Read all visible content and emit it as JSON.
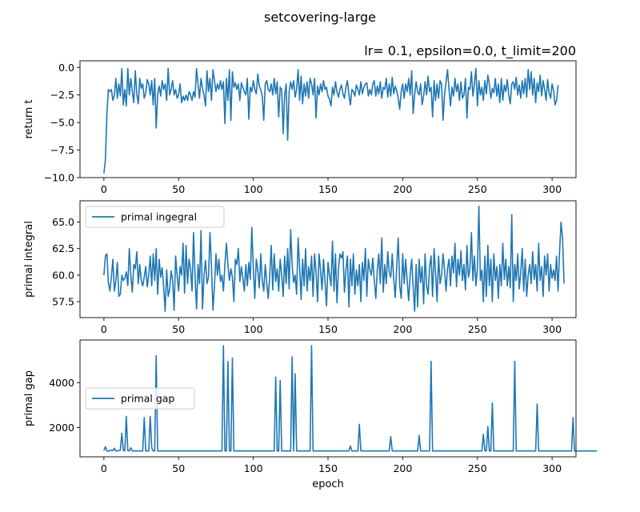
{
  "figure": {
    "suptitle": "setcovering-large",
    "title": "lr= 0.1, epsilon=0.0, t_limit=200",
    "line_color": "#1f77b4"
  },
  "chart_data": [
    {
      "type": "line",
      "title": "lr= 0.1, epsilon=0.0, t_limit=200",
      "xlabel": "",
      "ylabel": "return t",
      "xlim": [
        -16,
        316
      ],
      "ylim": [
        -10.0,
        0.6
      ],
      "xticks": [
        0,
        50,
        100,
        150,
        200,
        250,
        300
      ],
      "yticks": [
        -10.0,
        -7.5,
        -5.0,
        -2.5,
        0.0
      ],
      "ytick_labels": [
        "−10.0",
        "−7.5",
        "−5.0",
        "−2.5",
        "0.0"
      ],
      "legend": null,
      "series": [
        {
          "values": [
            -9.6,
            -8.4,
            -4.2,
            -2.0,
            -2.2,
            -2.0,
            -3.0,
            -2.5,
            -1.0,
            -2.8,
            -1.5,
            -2.6,
            -0.1,
            -3.4,
            -2.0,
            -3.5,
            -0.1,
            -2.5,
            -1.0,
            -2.2,
            -3.2,
            -0.3,
            -2.4,
            -3.3,
            -1.0,
            -1.9,
            -1.5,
            -2.8,
            -2.3,
            -1.1,
            -1.5,
            -2.5,
            -1.2,
            -3.4,
            -1.0,
            -5.5,
            -2.4,
            -1.7,
            -2.6,
            -1.2,
            -2.0,
            -1.5,
            -3.0,
            -0.1,
            -2.5,
            -2.0,
            -1.2,
            -2.5,
            -2.0,
            -2.8,
            -2.5,
            -1.5,
            -3.2,
            -2.6,
            -3.0,
            -2.5,
            -3.0,
            -2.2,
            -2.5,
            -3.0,
            -2.2,
            -2.7,
            -0.1,
            -1.5,
            -2.8,
            -1.0,
            -1.9,
            -2.5,
            -3.5,
            -0.3,
            -2.2,
            -1.0,
            -3.0,
            -0.2,
            -1.2,
            -2.2,
            -1.5,
            -2.0,
            -1.2,
            -2.0,
            -1.3,
            -5.1,
            -1.0,
            -3.0,
            -0.2,
            -4.8,
            -0.4,
            -1.8,
            -1.4,
            -2.0,
            -1.5,
            -3.0,
            -1.4,
            -1.8,
            -2.2,
            -2.5,
            -1.0,
            -4.7,
            -1.8,
            -2.2,
            -1.2,
            -2.0,
            -2.4,
            -0.6,
            -1.7,
            -2.0,
            -2.6,
            -4.8,
            -1.5,
            -1.2,
            -2.0,
            -2.2,
            -1.5,
            -2.5,
            -1.0,
            -2.4,
            -1.3,
            -4.5,
            -1.8,
            -2.0,
            -6.0,
            -2.5,
            -1.5,
            -6.6,
            -2.2,
            -1.3,
            -2.0,
            -1.2,
            -2.7,
            -2.0,
            -0.2,
            -3.0,
            -0.8,
            -3.3,
            -1.5,
            -2.6,
            -1.3,
            -2.8,
            -1.0,
            -1.5,
            -2.5,
            -1.0,
            -4.6,
            -1.7,
            -2.5,
            -1.5,
            -2.2,
            -1.2,
            -2.0,
            -1.8,
            -2.6,
            -2.9,
            -3.5,
            -1.8,
            -2.5,
            -1.3,
            -2.2,
            -2.7,
            -2.0,
            -1.6,
            -2.4,
            -2.8,
            -1.8,
            -1.2,
            -2.5,
            -3.4,
            -2.0,
            -2.2,
            -2.6,
            -1.6,
            -2.0,
            -2.5,
            -1.3,
            -2.4,
            -1.8,
            -1.5,
            -1.4,
            -2.6,
            -2.0,
            -2.5,
            -1.5,
            -1.2,
            -2.6,
            -1.7,
            -2.4,
            -1.3,
            -2.8,
            -1.8,
            -2.0,
            -1.0,
            -2.7,
            -1.5,
            -2.6,
            -0.9,
            -2.4,
            -1.7,
            -2.1,
            -2.8,
            -3.8,
            -2.2,
            -1.5,
            -2.8,
            -1.5,
            -2.2,
            -1.0,
            -2.5,
            -0.3,
            -4.2,
            -2.5,
            -1.3,
            -2.2,
            -2.5,
            -1.5,
            -3.4,
            -2.6,
            -1.3,
            -2.5,
            -0.8,
            -2.2,
            -1.8,
            -4.5,
            -1.2,
            -3.0,
            -1.5,
            -2.8,
            -1.2,
            -1.5,
            -4.8,
            -2.5,
            -1.3,
            -0.2,
            -2.0,
            -3.5,
            -1.8,
            -2.6,
            -1.0,
            -2.2,
            -1.5,
            -3.0,
            -1.3,
            -2.8,
            -2.5,
            -1.0,
            -4.6,
            -1.8,
            -2.0,
            -0.4,
            -2.6,
            -1.5,
            -0.1,
            -3.5,
            -1.2,
            -2.5,
            -1.8,
            -3.0,
            -1.2,
            -2.4,
            -0.7,
            -1.5,
            -2.8,
            -1.9,
            -2.3,
            -1.0,
            -2.6,
            -1.5,
            -3.2,
            -1.0,
            -3.0,
            -1.6,
            -2.2,
            -1.1,
            -2.5,
            -3.3,
            -1.5,
            -1.3,
            -2.0,
            -0.9,
            -2.5,
            -1.6,
            -2.8,
            -1.2,
            -2.4,
            -1.0,
            -2.7,
            -0.2,
            -2.0,
            -0.4,
            -2.5,
            -1.0,
            -3.2,
            -1.4,
            -2.2,
            -0.7,
            -2.6,
            -1.2,
            -2.0,
            -3.0,
            -1.1,
            -2.3,
            -2.8,
            -1.5,
            -2.1,
            -3.4,
            -3.0,
            -1.6
          ]
        }
      ]
    },
    {
      "type": "line",
      "xlabel": "",
      "ylabel": "primal integral",
      "xlim": [
        -16,
        316
      ],
      "ylim": [
        56.0,
        67.0
      ],
      "xticks": [
        0,
        50,
        100,
        150,
        200,
        250,
        300
      ],
      "yticks": [
        57.5,
        60.0,
        62.5,
        65.0
      ],
      "ytick_labels": [
        "57.5",
        "60.0",
        "62.5",
        "65.0"
      ],
      "legend": "upper left",
      "series": [
        {
          "name": "primal ingegral",
          "values": [
            60.0,
            61.8,
            62.0,
            59.3,
            58.5,
            59.8,
            61.5,
            58.5,
            59.5,
            61.2,
            58.0,
            58.2,
            60.0,
            59.5,
            59.7,
            60.3,
            59.0,
            62.5,
            60.0,
            58.4,
            61.0,
            60.6,
            62.2,
            59.2,
            61.0,
            59.5,
            59.0,
            59.8,
            60.8,
            58.9,
            60.0,
            61.8,
            59.0,
            62.0,
            59.5,
            62.5,
            58.2,
            61.5,
            59.8,
            60.7,
            58.8,
            56.6,
            60.5,
            58.0,
            58.6,
            60.4,
            59.5,
            56.7,
            61.8,
            60.0,
            58.5,
            60.8,
            60.0,
            63.0,
            58.3,
            62.8,
            59.2,
            61.5,
            60.6,
            58.5,
            64.0,
            60.0,
            56.8,
            61.0,
            59.2,
            64.2,
            56.8,
            60.0,
            61.4,
            59.2,
            59.8,
            64.0,
            60.8,
            56.7,
            59.0,
            62.0,
            60.0,
            61.5,
            59.4,
            60.0,
            58.5,
            61.0,
            63.0,
            61.0,
            59.5,
            60.6,
            59.8,
            57.5,
            61.5,
            61.0,
            62.5,
            59.4,
            60.8,
            59.7,
            58.5,
            61.0,
            59.0,
            61.2,
            59.6,
            64.5,
            60.7,
            57.8,
            61.5,
            60.5,
            58.8,
            62.0,
            59.5,
            58.5,
            61.0,
            59.2,
            57.8,
            60.0,
            62.8,
            58.6,
            62.0,
            59.4,
            60.6,
            58.5,
            61.5,
            60.0,
            58.0,
            61.8,
            59.2,
            62.5,
            58.7,
            64.3,
            61.0,
            59.3,
            60.0,
            58.2,
            63.5,
            60.8,
            57.7,
            61.5,
            59.0,
            62.5,
            58.5,
            60.8,
            59.5,
            61.8,
            58.0,
            62.0,
            60.3,
            57.5,
            62.0,
            60.5,
            58.6,
            61.5,
            59.4,
            57.1,
            61.2,
            60.0,
            59.0,
            63.2,
            58.5,
            62.0,
            57.4,
            60.6,
            62.0,
            61.6,
            62.2,
            58.4,
            60.5,
            61.8,
            57.0,
            61.5,
            59.0,
            62.0,
            58.2,
            60.5,
            59.0,
            61.0,
            57.5,
            61.2,
            59.5,
            62.5,
            58.0,
            61.5,
            60.5,
            60.0,
            61.6,
            59.5,
            57.8,
            60.5,
            62.0,
            59.2,
            63.5,
            58.4,
            61.0,
            59.2,
            62.2,
            60.3,
            59.8,
            62.0,
            59.6,
            57.9,
            60.8,
            63.5,
            59.0,
            57.8,
            62.0,
            59.2,
            61.5,
            59.5,
            57.6,
            60.0,
            61.5,
            58.9,
            56.6,
            61.0,
            57.0,
            61.5,
            59.3,
            60.8,
            57.3,
            62.0,
            59.0,
            58.2,
            60.8,
            61.8,
            58.0,
            62.5,
            60.2,
            57.5,
            61.8,
            59.2,
            60.0,
            62.0,
            60.5,
            58.5,
            60.6,
            61.5,
            59.0,
            61.8,
            60.2,
            63.0,
            58.9,
            61.5,
            60.0,
            62.3,
            59.5,
            61.0,
            58.6,
            62.8,
            59.8,
            60.6,
            64.0,
            59.5,
            61.8,
            59.0,
            60.6,
            66.5,
            59.5,
            60.5,
            57.5,
            61.8,
            58.0,
            62.8,
            59.0,
            61.5,
            57.5,
            62.0,
            59.5,
            60.8,
            57.8,
            61.0,
            59.0,
            63.0,
            59.6,
            61.5,
            59.0,
            60.8,
            58.8,
            65.7,
            57.5,
            61.0,
            59.5,
            62.0,
            58.7,
            60.2,
            62.5,
            58.5,
            61.5,
            58.0,
            60.0,
            61.0,
            59.2,
            62.2,
            59.6,
            61.0,
            58.5,
            63.0,
            59.5,
            60.8,
            58.0,
            61.8,
            60.0,
            62.0,
            58.5,
            61.0,
            59.7,
            60.5,
            59.5,
            61.8,
            58.5,
            62.2,
            65.0,
            63.5,
            59.2
          ]
        }
      ]
    },
    {
      "type": "line",
      "xlabel": "epoch",
      "ylabel": "primal gap",
      "xlim": [
        -16,
        316
      ],
      "ylim": [
        700,
        5900
      ],
      "xticks": [
        0,
        50,
        100,
        150,
        200,
        250,
        300
      ],
      "yticks": [
        2000,
        4000
      ],
      "ytick_labels": [
        "2000",
        "4000"
      ],
      "legend": "center left",
      "series": [
        {
          "name": "primal gap",
          "values": [
            980,
            1150,
            960,
            950,
            980,
            1000,
            970,
            1080,
            960,
            960,
            980,
            1000,
            1750,
            990,
            960,
            2500,
            980,
            960,
            1100,
            960,
            960,
            960,
            960,
            960,
            960,
            960,
            960,
            2450,
            960,
            960,
            960,
            2500,
            1100,
            960,
            960,
            5200,
            960,
            960,
            960,
            960,
            960,
            960,
            960,
            960,
            960,
            960,
            960,
            960,
            960,
            960,
            960,
            960,
            960,
            960,
            960,
            960,
            960,
            960,
            960,
            960,
            960,
            960,
            960,
            960,
            960,
            960,
            960,
            960,
            960,
            960,
            960,
            960,
            960,
            960,
            960,
            960,
            960,
            960,
            960,
            960,
            5650,
            960,
            960,
            4950,
            960,
            960,
            5100,
            960,
            960,
            960,
            960,
            960,
            960,
            960,
            960,
            960,
            960,
            960,
            960,
            960,
            960,
            960,
            960,
            960,
            960,
            960,
            960,
            960,
            960,
            960,
            960,
            960,
            960,
            960,
            960,
            4250,
            960,
            960,
            4100,
            960,
            960,
            960,
            960,
            960,
            960,
            960,
            5150,
            960,
            4400,
            960,
            960,
            960,
            960,
            960,
            960,
            960,
            960,
            960,
            960,
            5650,
            960,
            960,
            960,
            960,
            960,
            960,
            960,
            960,
            960,
            960,
            960,
            960,
            960,
            960,
            960,
            960,
            960,
            960,
            960,
            960,
            960,
            960,
            960,
            960,
            960,
            1180,
            960,
            960,
            960,
            960,
            960,
            2150,
            960,
            960,
            960,
            960,
            960,
            960,
            960,
            960,
            960,
            960,
            960,
            960,
            960,
            960,
            960,
            960,
            960,
            960,
            960,
            960,
            1600,
            960,
            960,
            960,
            960,
            960,
            960,
            960,
            960,
            960,
            960,
            960,
            960,
            960,
            960,
            960,
            960,
            960,
            960,
            1650,
            960,
            960,
            960,
            960,
            960,
            960,
            960,
            4950,
            960,
            960,
            960,
            960,
            960,
            960,
            960,
            960,
            960,
            960,
            960,
            960,
            960,
            960,
            960,
            960,
            960,
            960,
            960,
            960,
            960,
            960,
            960,
            960,
            960,
            960,
            960,
            960,
            960,
            960,
            960,
            960,
            960,
            960,
            1700,
            960,
            960,
            2050,
            960,
            960,
            3100,
            960,
            960,
            960,
            960,
            960,
            960,
            960,
            960,
            960,
            960,
            960,
            960,
            960,
            960,
            4950,
            960,
            960,
            960,
            960,
            960,
            960,
            960,
            960,
            960,
            960,
            960,
            960,
            960,
            960,
            3050,
            960,
            960,
            960,
            960,
            960,
            960,
            960,
            960,
            960,
            960,
            960,
            960,
            960,
            960,
            960,
            960,
            960,
            960,
            960,
            960,
            960,
            960,
            960,
            2450,
            960,
            960,
            960,
            960,
            960,
            960,
            960,
            960,
            960,
            960,
            960,
            960,
            960,
            960,
            960,
            960
          ]
        }
      ]
    }
  ]
}
